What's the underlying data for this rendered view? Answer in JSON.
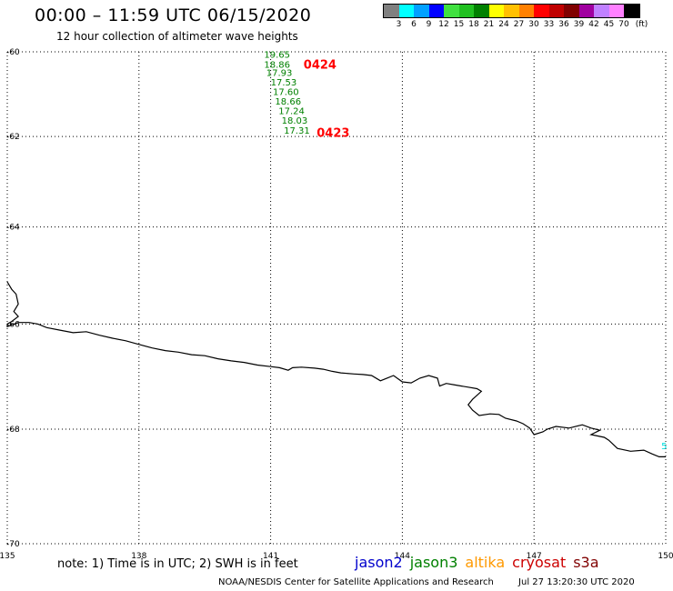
{
  "header": {
    "title": "00:00 – 11:59 UTC 06/15/2020",
    "subtitle": "12 hour collection of altimeter wave heights"
  },
  "legend": {
    "unit": "(ft)",
    "bins": [
      {
        "label": "3",
        "color": "#808080"
      },
      {
        "label": "6",
        "color": "#00ffff"
      },
      {
        "label": "9",
        "color": "#00a0ff"
      },
      {
        "label": "12",
        "color": "#0000ff"
      },
      {
        "label": "15",
        "color": "#40e040"
      },
      {
        "label": "18",
        "color": "#20c020"
      },
      {
        "label": "21",
        "color": "#008000"
      },
      {
        "label": "24",
        "color": "#ffff00"
      },
      {
        "label": "27",
        "color": "#ffc000"
      },
      {
        "label": "30",
        "color": "#ff8000"
      },
      {
        "label": "33",
        "color": "#ff0000"
      },
      {
        "label": "36",
        "color": "#c00000"
      },
      {
        "label": "39",
        "color": "#800000"
      },
      {
        "label": "42",
        "color": "#a000a0"
      },
      {
        "label": "45",
        "color": "#c080ff"
      },
      {
        "label": "70",
        "color": "#ff80ff"
      },
      {
        "label": "",
        "color": "#000000"
      }
    ]
  },
  "map": {
    "lon_range": [
      135,
      150
    ],
    "lat_range": [
      -70,
      -60
    ],
    "lon_ticks": [
      "135",
      "138",
      "141",
      "144",
      "147",
      "150"
    ],
    "lat_ticks": [
      "-60",
      "-62",
      "-64",
      "-66",
      "-68",
      "-70"
    ],
    "wave_color": "#008000",
    "track_label_color": "#ff0000",
    "wave_heights": [
      {
        "value": "19.65",
        "lon": 140.85,
        "lat": -60.05
      },
      {
        "value": "18.86",
        "lon": 140.85,
        "lat": -60.3
      },
      {
        "value": "17.93",
        "lon": 140.9,
        "lat": -60.5
      },
      {
        "value": "17.53",
        "lon": 141.0,
        "lat": -60.72
      },
      {
        "value": "17.60",
        "lon": 141.05,
        "lat": -60.95
      },
      {
        "value": "18.66",
        "lon": 141.1,
        "lat": -61.18
      },
      {
        "value": "17.24",
        "lon": 141.18,
        "lat": -61.4
      },
      {
        "value": "18.03",
        "lon": 141.25,
        "lat": -61.62
      },
      {
        "value": "17.31",
        "lon": 141.3,
        "lat": -61.85
      }
    ],
    "track_times": [
      {
        "value": "0424",
        "lon": 141.75,
        "lat": -60.3
      },
      {
        "value": "0423",
        "lon": 142.05,
        "lat": -61.9
      }
    ],
    "edge_value": {
      "value": "5",
      "lon": 149.9,
      "lat": -68.3,
      "color": "#00e0e0"
    },
    "coastline": [
      [
        135.0,
        -65.15
      ],
      [
        135.1,
        -65.3
      ],
      [
        135.2,
        -65.4
      ],
      [
        135.25,
        -65.6
      ],
      [
        135.15,
        -65.75
      ],
      [
        135.25,
        -65.85
      ],
      [
        135.1,
        -65.95
      ],
      [
        135.0,
        -66.0
      ],
      [
        135.0,
        -66.05
      ],
      [
        135.25,
        -65.97
      ],
      [
        135.5,
        -65.97
      ],
      [
        135.7,
        -66.0
      ],
      [
        135.9,
        -66.07
      ],
      [
        136.2,
        -66.12
      ],
      [
        136.5,
        -66.17
      ],
      [
        136.8,
        -66.15
      ],
      [
        137.1,
        -66.22
      ],
      [
        137.4,
        -66.28
      ],
      [
        137.7,
        -66.33
      ],
      [
        138.0,
        -66.4
      ],
      [
        138.3,
        -66.47
      ],
      [
        138.6,
        -66.52
      ],
      [
        138.9,
        -66.55
      ],
      [
        139.2,
        -66.6
      ],
      [
        139.5,
        -66.62
      ],
      [
        139.8,
        -66.68
      ],
      [
        140.1,
        -66.72
      ],
      [
        140.4,
        -66.75
      ],
      [
        140.7,
        -66.8
      ],
      [
        141.0,
        -66.83
      ],
      [
        141.2,
        -66.85
      ],
      [
        141.4,
        -66.9
      ],
      [
        141.5,
        -66.85
      ],
      [
        141.7,
        -66.84
      ],
      [
        142.0,
        -66.86
      ],
      [
        142.2,
        -66.88
      ],
      [
        142.4,
        -66.92
      ],
      [
        142.6,
        -66.95
      ],
      [
        142.9,
        -66.97
      ],
      [
        143.1,
        -66.98
      ],
      [
        143.3,
        -67.0
      ],
      [
        143.5,
        -67.1
      ],
      [
        143.65,
        -67.05
      ],
      [
        143.8,
        -67.0
      ],
      [
        144.0,
        -67.12
      ],
      [
        144.2,
        -67.14
      ],
      [
        144.4,
        -67.05
      ],
      [
        144.6,
        -67.0
      ],
      [
        144.8,
        -67.05
      ],
      [
        144.85,
        -67.2
      ],
      [
        145.0,
        -67.15
      ],
      [
        145.2,
        -67.18
      ],
      [
        145.5,
        -67.22
      ],
      [
        145.7,
        -67.25
      ],
      [
        145.8,
        -67.3
      ],
      [
        145.6,
        -67.45
      ],
      [
        145.5,
        -67.55
      ],
      [
        145.6,
        -67.65
      ],
      [
        145.75,
        -67.75
      ],
      [
        146.0,
        -67.72
      ],
      [
        146.2,
        -67.73
      ],
      [
        146.35,
        -67.8
      ],
      [
        146.6,
        -67.85
      ],
      [
        146.75,
        -67.9
      ],
      [
        146.9,
        -67.98
      ],
      [
        147.0,
        -68.1
      ],
      [
        147.2,
        -68.05
      ],
      [
        147.3,
        -68.0
      ],
      [
        147.5,
        -67.95
      ],
      [
        147.8,
        -67.98
      ],
      [
        148.1,
        -67.92
      ],
      [
        148.3,
        -67.98
      ],
      [
        148.5,
        -68.02
      ],
      [
        148.3,
        -68.1
      ],
      [
        148.6,
        -68.15
      ],
      [
        148.7,
        -68.2
      ],
      [
        148.9,
        -68.35
      ],
      [
        149.2,
        -68.4
      ],
      [
        149.5,
        -68.38
      ],
      [
        149.7,
        -68.45
      ],
      [
        149.85,
        -68.5
      ],
      [
        150.0,
        -68.5
      ]
    ]
  },
  "footer": {
    "note": "note: 1) Time is in UTC; 2) SWH is in feet",
    "missions": [
      {
        "name": "jason2",
        "color": "#0000cc"
      },
      {
        "name": "jason3",
        "color": "#008000"
      },
      {
        "name": "altika",
        "color": "#ff9900"
      },
      {
        "name": "cryosat",
        "color": "#cc0000"
      },
      {
        "name": "s3a",
        "color": "#800000"
      }
    ],
    "credit": "NOAA/NESDIS Center for Satellite Applications and Research",
    "timestamp": "Jul 27 13:20:30 UTC 2020"
  }
}
